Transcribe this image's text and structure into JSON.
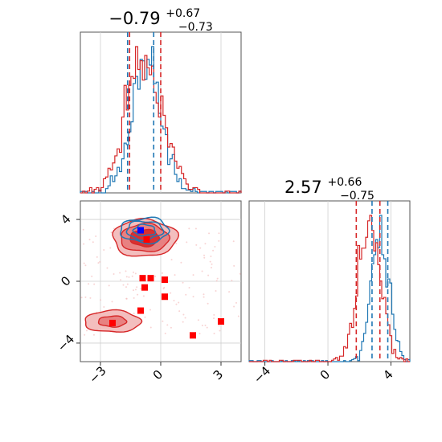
{
  "chart_data": [
    {
      "type": "histogram",
      "panel": "top-left",
      "title": {
        "main": "−0.79",
        "sup": "+0.67",
        "sub": "−0.73"
      },
      "xlim": [
        -4.0,
        4.0
      ],
      "grid": true,
      "series": [
        {
          "name": "",
          "color": "#1f77b4",
          "mean": -0.7,
          "sd": 0.75,
          "quantiles": [
            -1.65,
            -0.35
          ]
        },
        {
          "name": "",
          "color": "#d62728",
          "mean": -0.8,
          "sd": 0.9,
          "quantiles": [
            -1.55,
            0.0
          ]
        }
      ]
    },
    {
      "type": "contour",
      "panel": "bottom-left",
      "xlim": [
        -4.0,
        4.0
      ],
      "ylim": [
        -5.2,
        5.2
      ],
      "xticks": [
        "−3",
        "0",
        "3"
      ],
      "yticks": [
        "4",
        "0",
        "−4"
      ],
      "grid": true,
      "blue_marker": [
        -1.0,
        3.3
      ],
      "red_markers": [
        [
          -0.7,
          2.7
        ],
        [
          -0.9,
          0.2
        ],
        [
          -0.5,
          0.2
        ],
        [
          0.2,
          0.1
        ],
        [
          -0.8,
          -0.4
        ],
        [
          -1.0,
          -1.9
        ],
        [
          0.2,
          -1.0
        ],
        [
          -2.4,
          -2.7
        ],
        [
          1.6,
          -3.5
        ],
        [
          3.0,
          -2.6
        ]
      ],
      "blue_contour": {
        "center": [
          -0.8,
          3.3
        ],
        "spread": [
          1.2,
          0.8
        ]
      },
      "red_contours": [
        {
          "center": [
            -0.8,
            2.8
          ],
          "spread": [
            1.6,
            1.2
          ]
        },
        {
          "center": [
            -2.4,
            -2.6
          ],
          "spread": [
            1.4,
            0.7
          ]
        }
      ]
    },
    {
      "type": "histogram",
      "panel": "bottom-right",
      "title": {
        "main": "2.57",
        "sup": "+0.66",
        "sub": "−0.75"
      },
      "xlim": [
        -5.0,
        5.2
      ],
      "xticks": [
        "−4",
        "0",
        "4"
      ],
      "grid": true,
      "series": [
        {
          "name": "",
          "color": "#1f77b4",
          "mean": 3.3,
          "sd": 0.55,
          "quantiles": [
            2.8,
            3.8
          ]
        },
        {
          "name": "",
          "color": "#d62728",
          "mean": 2.6,
          "sd": 0.7,
          "quantiles": [
            1.8,
            3.3
          ]
        }
      ]
    }
  ]
}
